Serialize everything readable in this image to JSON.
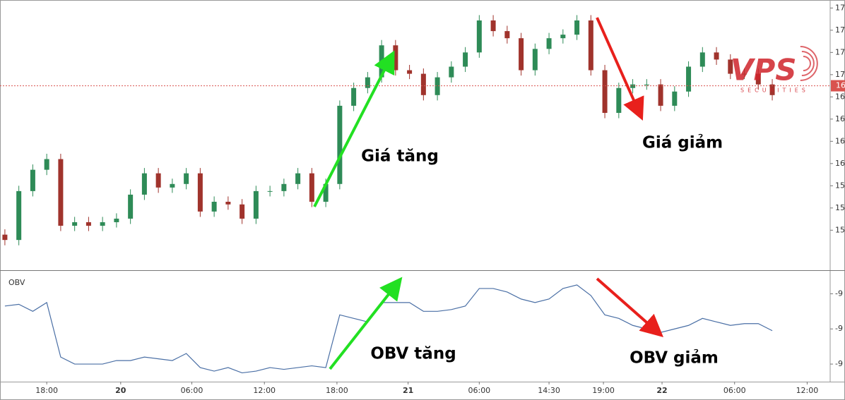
{
  "chart_data": [
    {
      "type": "candlestick",
      "up_color": "#2e8b57",
      "down_color": "#a0332c",
      "open": [
        15.2,
        15.14,
        15.69,
        15.93,
        16.05,
        15.3,
        15.34,
        15.3,
        15.34,
        15.38,
        15.65,
        15.89,
        15.73,
        15.77,
        15.89,
        15.46,
        15.57,
        15.54,
        15.38,
        15.69,
        15.69,
        15.77,
        15.89,
        15.57,
        15.77,
        16.65,
        16.85,
        16.97,
        17.33,
        17.05,
        17.01,
        16.77,
        16.97,
        17.09,
        17.25,
        17.61,
        17.49,
        17.41,
        17.05,
        17.29,
        17.41,
        17.45,
        17.61,
        17.05,
        16.57,
        16.85,
        16.89,
        16.89,
        16.65,
        16.81,
        17.09,
        17.25,
        17.17,
        17.01,
        17.01,
        16.89
      ],
      "high": [
        15.26,
        15.75,
        15.99,
        16.11,
        16.11,
        15.4,
        15.4,
        15.4,
        15.44,
        15.71,
        15.95,
        15.95,
        15.83,
        15.95,
        15.95,
        15.63,
        15.63,
        15.6,
        15.75,
        15.75,
        15.83,
        15.95,
        15.95,
        15.83,
        16.71,
        16.91,
        17.03,
        17.39,
        17.39,
        17.11,
        17.07,
        17.03,
        17.15,
        17.31,
        17.67,
        17.67,
        17.55,
        17.47,
        17.35,
        17.47,
        17.51,
        17.67,
        17.67,
        17.11,
        16.91,
        16.95,
        16.95,
        16.95,
        16.87,
        17.15,
        17.31,
        17.31,
        17.23,
        17.07,
        17.07,
        16.95
      ],
      "low": [
        15.08,
        15.08,
        15.63,
        15.87,
        15.24,
        15.24,
        15.24,
        15.24,
        15.28,
        15.32,
        15.59,
        15.67,
        15.67,
        15.71,
        15.4,
        15.4,
        15.48,
        15.32,
        15.32,
        15.63,
        15.63,
        15.71,
        15.51,
        15.51,
        15.71,
        16.59,
        16.79,
        16.91,
        16.99,
        16.95,
        16.71,
        16.71,
        16.91,
        17.03,
        17.19,
        17.43,
        17.35,
        16.99,
        16.99,
        17.23,
        17.35,
        17.39,
        16.99,
        16.51,
        16.51,
        16.79,
        16.83,
        16.59,
        16.59,
        16.75,
        17.03,
        17.11,
        16.95,
        16.95,
        16.83,
        16.71
      ],
      "close": [
        15.14,
        15.69,
        15.93,
        16.05,
        15.3,
        15.34,
        15.3,
        15.34,
        15.38,
        15.65,
        15.89,
        15.73,
        15.77,
        15.89,
        15.46,
        15.57,
        15.54,
        15.38,
        15.69,
        15.69,
        15.77,
        15.89,
        15.57,
        15.77,
        16.65,
        16.85,
        16.97,
        17.33,
        17.05,
        17.01,
        16.77,
        16.97,
        17.09,
        17.25,
        17.61,
        17.49,
        17.41,
        17.05,
        17.29,
        17.41,
        17.45,
        17.61,
        17.05,
        16.57,
        16.85,
        16.89,
        16.89,
        16.65,
        16.81,
        17.09,
        17.25,
        17.17,
        17.01,
        17.01,
        16.89,
        16.77
      ],
      "xlim": [
        -0.35,
        59.15
      ],
      "ylim": [
        14.8,
        17.84
      ],
      "yticks": [
        {
          "value": 17.75,
          "label": "17"
        },
        {
          "value": 17.5,
          "label": "17"
        },
        {
          "value": 17.25,
          "label": "17"
        },
        {
          "value": 17.0,
          "label": "17"
        },
        {
          "value": 16.75,
          "label": "16"
        },
        {
          "value": 16.5,
          "label": "16"
        },
        {
          "value": 16.25,
          "label": "16"
        },
        {
          "value": 16.0,
          "label": "16"
        },
        {
          "value": 15.75,
          "label": "15"
        },
        {
          "value": 15.5,
          "label": "15"
        },
        {
          "value": 15.25,
          "label": "15"
        }
      ],
      "last_price": {
        "value": 16.875,
        "label": "16"
      },
      "last_price_color": "#d9534f",
      "annotations": [
        "Giá tăng",
        "Giá giảm"
      ],
      "watermark": {
        "text": "VPS",
        "subtext": "SECURITIES",
        "color": "#d0242b"
      }
    },
    {
      "type": "line",
      "series": [
        {
          "name": "OBV",
          "color": "#4a6fa5",
          "values": [
            -9.27,
            -9.26,
            -9.3,
            -9.25,
            -9.56,
            -9.6,
            -9.6,
            -9.6,
            -9.58,
            -9.58,
            -9.56,
            -9.57,
            -9.58,
            -9.54,
            -9.62,
            -9.64,
            -9.62,
            -9.65,
            -9.64,
            -9.62,
            -9.63,
            -9.62,
            -9.61,
            -9.62,
            -9.32,
            -9.34,
            -9.36,
            -9.25,
            -9.25,
            -9.25,
            -9.3,
            -9.3,
            -9.29,
            -9.27,
            -9.17,
            -9.17,
            -9.19,
            -9.23,
            -9.25,
            -9.23,
            -9.17,
            -9.15,
            -9.21,
            -9.32,
            -9.34,
            -9.38,
            -9.4,
            -9.42,
            -9.4,
            -9.38,
            -9.34,
            -9.36,
            -9.38,
            -9.37,
            -9.37,
            -9.41
          ]
        }
      ],
      "xlim": [
        -0.35,
        59.15
      ],
      "ylim": [
        -9.7,
        -9.07
      ],
      "yticks": [
        {
          "value": -9.2,
          "label": "-9"
        },
        {
          "value": -9.4,
          "label": "-9"
        },
        {
          "value": -9.6,
          "label": "-9"
        }
      ],
      "xticks": [
        {
          "value": 3.0,
          "label": "18:00"
        },
        {
          "value": 8.3,
          "label": "20"
        },
        {
          "value": 13.4,
          "label": "06:00"
        },
        {
          "value": 18.6,
          "label": "12:00"
        },
        {
          "value": 23.8,
          "label": "18:00"
        },
        {
          "value": 28.9,
          "label": "21"
        },
        {
          "value": 34.0,
          "label": "06:00"
        },
        {
          "value": 39.0,
          "label": "14:30"
        },
        {
          "value": 42.9,
          "label": "19:00"
        },
        {
          "value": 47.1,
          "label": "22"
        },
        {
          "value": 52.3,
          "label": "06:00"
        },
        {
          "value": 57.5,
          "label": "12:00"
        }
      ],
      "annotations": [
        "OBV tăng",
        "OBV giảm"
      ]
    }
  ]
}
